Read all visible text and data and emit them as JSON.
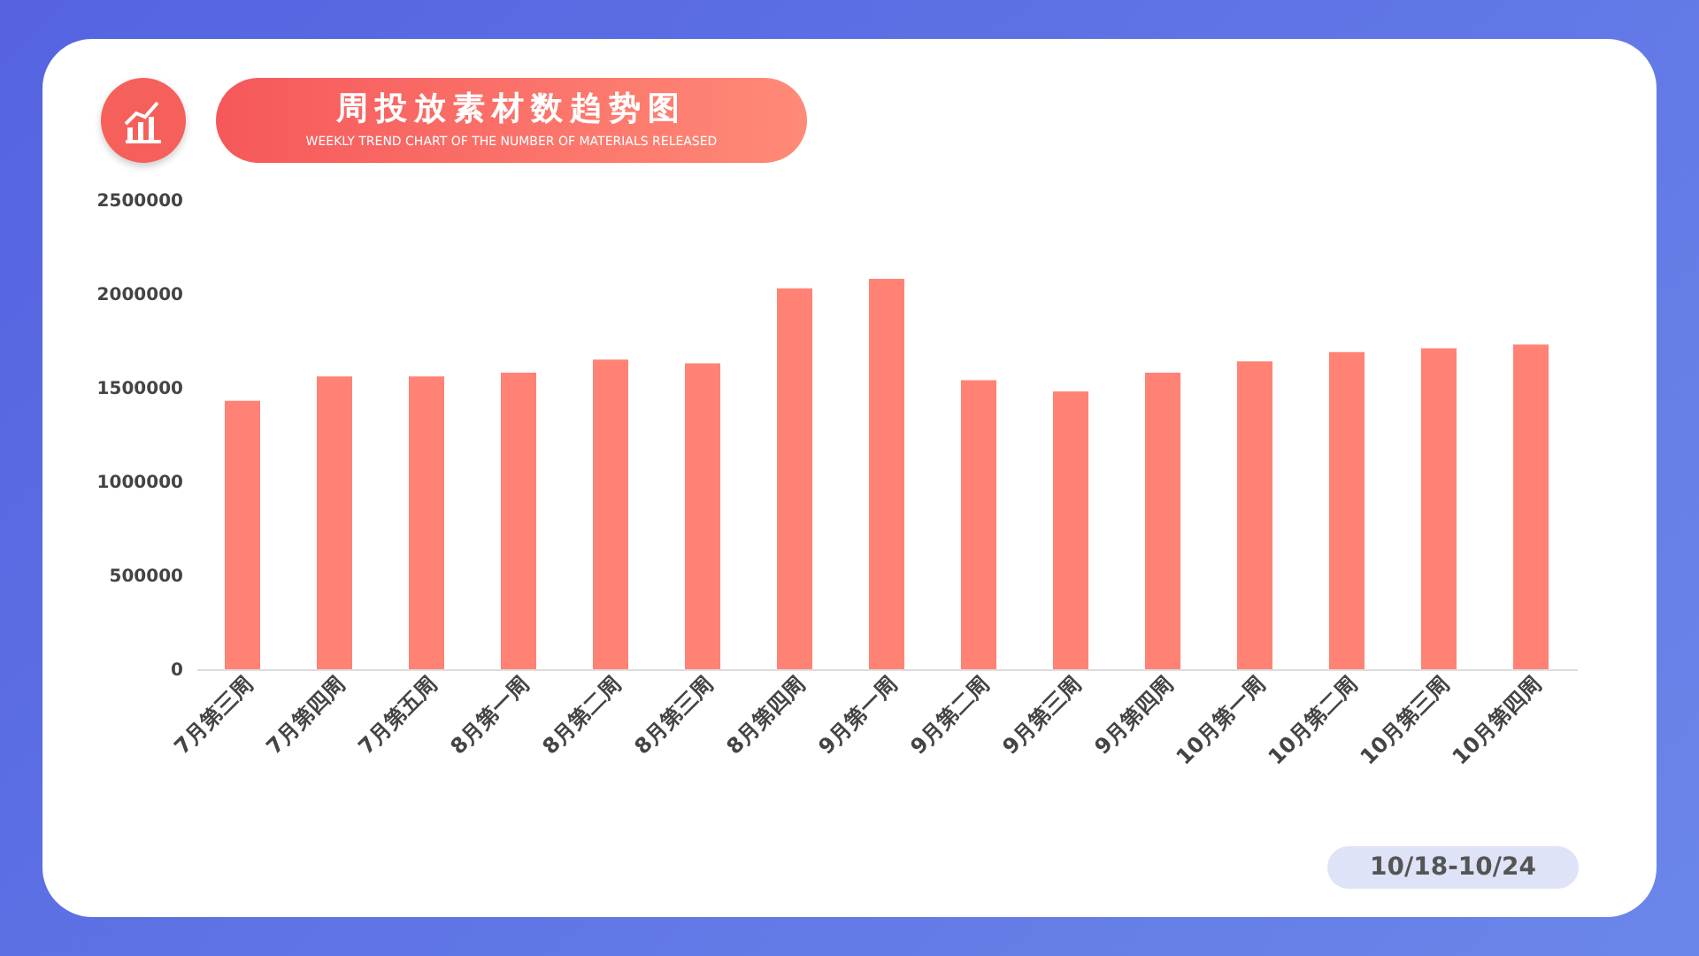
{
  "chart_data": {
    "type": "bar",
    "title": "周投放素材数趋势图",
    "subtitle": "WEEKLY TREND CHART OF THE NUMBER OF MATERIALS RELEASED",
    "categories": [
      "7月第三周",
      "7月第四周",
      "7月第五周",
      "8月第一周",
      "8月第二周",
      "8月第三周",
      "8月第四周",
      "9月第一周",
      "9月第二周",
      "9月第三周",
      "9月第四周",
      "10月第一周",
      "10月第二周",
      "10月第三周",
      "10月第四周"
    ],
    "values": [
      1430000,
      1560000,
      1560000,
      1580000,
      1650000,
      1630000,
      2030000,
      2080000,
      1540000,
      1480000,
      1580000,
      1640000,
      1690000,
      1710000,
      1730000
    ],
    "color": "#ff8274",
    "ylim": [
      0,
      2500000
    ],
    "yticks": [
      0,
      500000,
      1000000,
      1500000,
      2000000,
      2500000
    ],
    "grid": false,
    "annotations": [
      "10/18-10/24"
    ]
  }
}
